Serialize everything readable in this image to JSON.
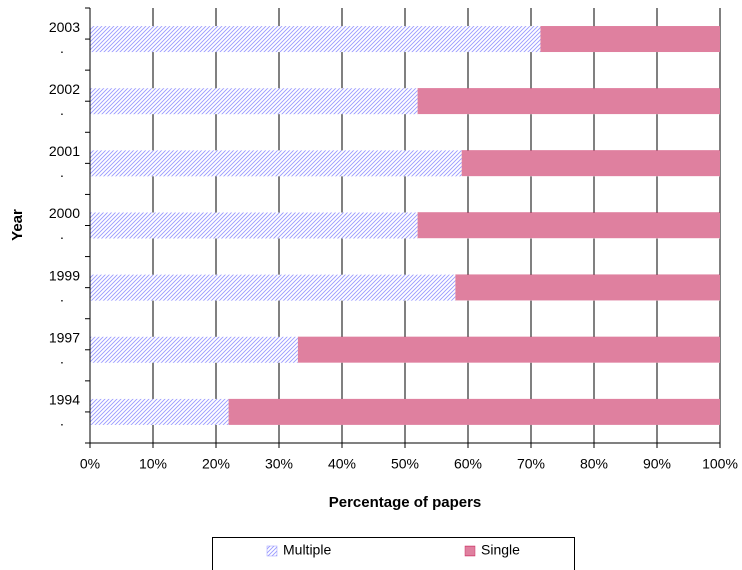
{
  "chart_data": {
    "type": "stacked-bar-horizontal",
    "x_label": "Percentage of papers",
    "y_label": "Year",
    "categories": [
      "2003",
      "2002",
      "2001",
      "2000",
      "1999",
      "1997",
      "1994"
    ],
    "category_sublabels": [
      ".",
      ".",
      ".",
      ".",
      ".",
      ".",
      "."
    ],
    "series": [
      {
        "name": "Multiple",
        "color": "#9999ff",
        "pattern": "diagonal",
        "values": [
          71.5,
          52,
          59,
          52,
          58,
          33,
          22
        ]
      },
      {
        "name": "Single",
        "color": "#cc3366",
        "pattern": "horizontal",
        "values": [
          28.5,
          48,
          41,
          48,
          42,
          67,
          78
        ]
      }
    ],
    "xlim": [
      0,
      100
    ],
    "xticks": [
      {
        "value": 0,
        "label": "0%"
      },
      {
        "value": 10,
        "label": "10%"
      },
      {
        "value": 20,
        "label": "20%"
      },
      {
        "value": 30,
        "label": "30%"
      },
      {
        "value": 40,
        "label": "40%"
      },
      {
        "value": 50,
        "label": "50%"
      },
      {
        "value": 60,
        "label": "60%"
      },
      {
        "value": 70,
        "label": "70%"
      },
      {
        "value": 80,
        "label": "80%"
      },
      {
        "value": 90,
        "label": "90%"
      },
      {
        "value": 100,
        "label": "100%"
      }
    ],
    "grid": true,
    "legend": "bottom"
  }
}
